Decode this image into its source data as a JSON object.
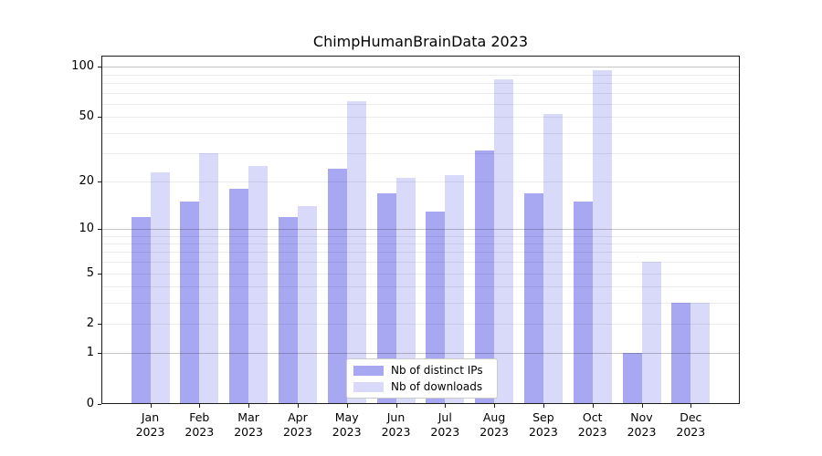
{
  "chart_data": {
    "type": "bar",
    "title": "ChimpHumanBrainData 2023",
    "x_tick_year": "2023",
    "categories": [
      "Jan",
      "Feb",
      "Mar",
      "Apr",
      "May",
      "Jun",
      "Jul",
      "Aug",
      "Sep",
      "Oct",
      "Nov",
      "Dec"
    ],
    "series": [
      {
        "name": "Nb of distinct IPs",
        "color": "#a7a7f2",
        "values": [
          12,
          15,
          18,
          12,
          24,
          17,
          13,
          31,
          17,
          15,
          1,
          3
        ]
      },
      {
        "name": "Nb of downloads",
        "color": "#d9d9fa",
        "values": [
          23,
          30,
          25,
          14,
          62,
          21,
          22,
          84,
          52,
          96,
          6,
          3
        ]
      }
    ],
    "xlabel": "",
    "ylabel": "",
    "yscale": "log1p",
    "ylim": [
      0,
      117
    ],
    "yticks": [
      100,
      50,
      20,
      10,
      5,
      2,
      1,
      0
    ],
    "grid": true,
    "grid_major_values": [
      1,
      10,
      100
    ],
    "grid_minor_values": [
      2,
      3,
      4,
      5,
      6,
      7,
      8,
      9,
      20,
      30,
      40,
      50,
      60,
      70,
      80,
      90
    ],
    "legend_position": "lower center"
  }
}
